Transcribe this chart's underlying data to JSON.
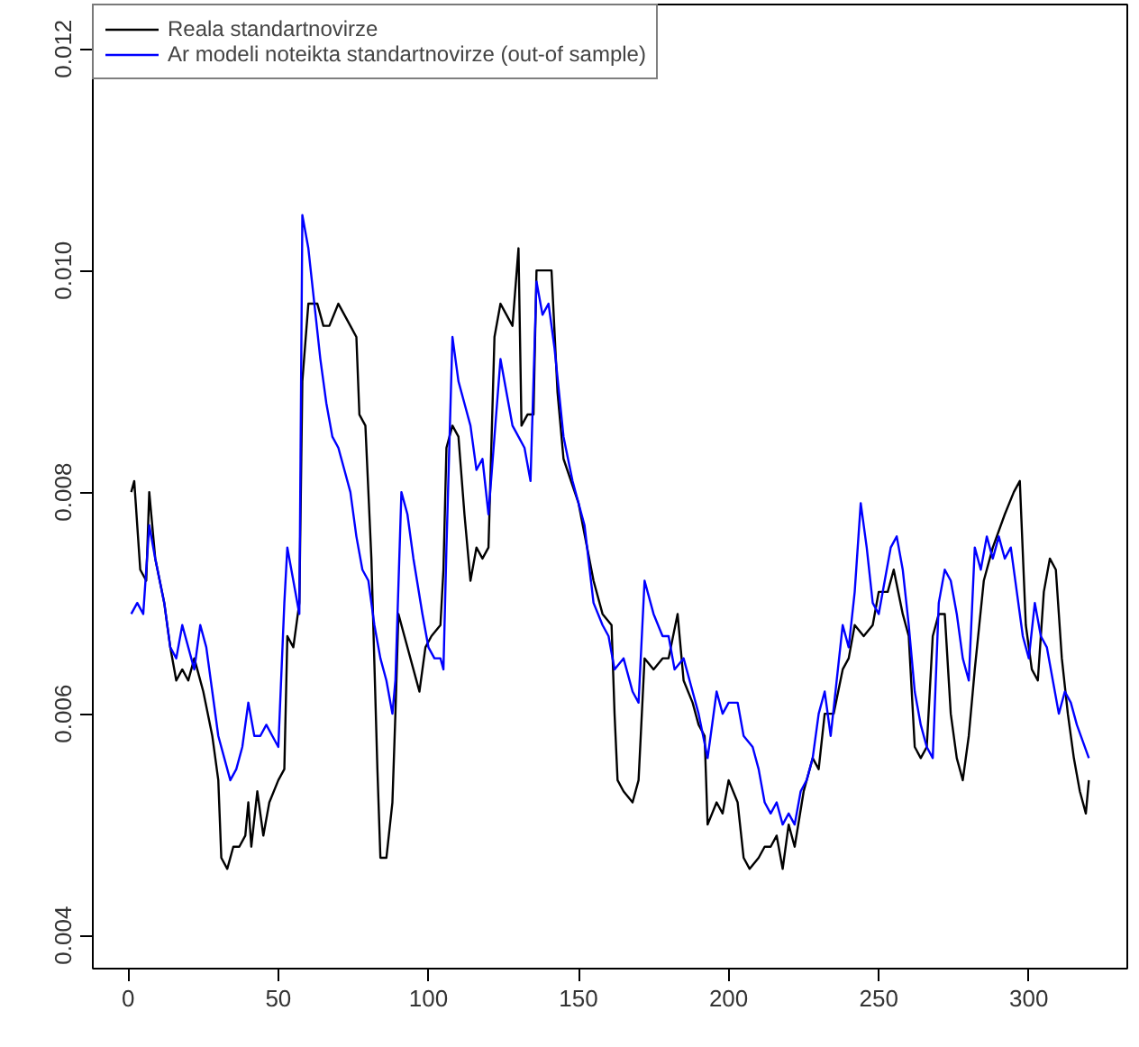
{
  "chart_data": {
    "type": "line",
    "series": [
      {
        "name": "Reala standartnovirze",
        "color": "#000000",
        "x": [
          1,
          2,
          4,
          6,
          7,
          9,
          12,
          14,
          16,
          18,
          20,
          22,
          25,
          28,
          30,
          31,
          33,
          35,
          37,
          39,
          40,
          41,
          43,
          45,
          47,
          50,
          52,
          53,
          55,
          57,
          58,
          60,
          63,
          65,
          67,
          70,
          72,
          74,
          76,
          77,
          79,
          81,
          83,
          84,
          86,
          88,
          89,
          90,
          92,
          95,
          97,
          99,
          101,
          104,
          105,
          106,
          108,
          110,
          112,
          114,
          116,
          118,
          120,
          122,
          124,
          126,
          128,
          130,
          131,
          133,
          135,
          136,
          138,
          141,
          143,
          145,
          150,
          155,
          158,
          161,
          162,
          163,
          165,
          168,
          170,
          172,
          175,
          178,
          180,
          183,
          185,
          188,
          190,
          192,
          193,
          196,
          198,
          200,
          203,
          205,
          207,
          210,
          212,
          214,
          216,
          218,
          220,
          222,
          225,
          228,
          230,
          232,
          235,
          238,
          240,
          242,
          245,
          248,
          250,
          253,
          255,
          258,
          260,
          262,
          264,
          266,
          268,
          270,
          272,
          274,
          276,
          278,
          280,
          282,
          285,
          288,
          292,
          295,
          297,
          299,
          301,
          303,
          305,
          307,
          309,
          311,
          313,
          315,
          317,
          319,
          320
        ],
        "values": [
          0.008,
          0.0081,
          0.0073,
          0.0072,
          0.008,
          0.0074,
          0.007,
          0.0066,
          0.0063,
          0.0064,
          0.0063,
          0.0065,
          0.0062,
          0.0058,
          0.0054,
          0.0047,
          0.0046,
          0.0048,
          0.0048,
          0.0049,
          0.0052,
          0.0048,
          0.0053,
          0.0049,
          0.0052,
          0.0054,
          0.0055,
          0.0067,
          0.0066,
          0.007,
          0.009,
          0.0097,
          0.0097,
          0.0095,
          0.0095,
          0.0097,
          0.0096,
          0.0095,
          0.0094,
          0.0087,
          0.0086,
          0.0074,
          0.0055,
          0.0047,
          0.0047,
          0.0052,
          0.006,
          0.0069,
          0.0067,
          0.0064,
          0.0062,
          0.0066,
          0.0067,
          0.0068,
          0.0073,
          0.0084,
          0.0086,
          0.0085,
          0.0078,
          0.0072,
          0.0075,
          0.0074,
          0.0075,
          0.0094,
          0.0097,
          0.0096,
          0.0095,
          0.0102,
          0.0086,
          0.0087,
          0.0087,
          0.01,
          0.01,
          0.01,
          0.0089,
          0.0083,
          0.0079,
          0.0072,
          0.0069,
          0.0068,
          0.006,
          0.0054,
          0.0053,
          0.0052,
          0.0054,
          0.0065,
          0.0064,
          0.0065,
          0.0065,
          0.0069,
          0.0063,
          0.0061,
          0.0059,
          0.0058,
          0.005,
          0.0052,
          0.0051,
          0.0054,
          0.0052,
          0.0047,
          0.0046,
          0.0047,
          0.0048,
          0.0048,
          0.0049,
          0.0046,
          0.005,
          0.0048,
          0.0053,
          0.0056,
          0.0055,
          0.006,
          0.006,
          0.0064,
          0.0065,
          0.0068,
          0.0067,
          0.0068,
          0.0071,
          0.0071,
          0.0073,
          0.0069,
          0.0067,
          0.0057,
          0.0056,
          0.0057,
          0.0067,
          0.0069,
          0.0069,
          0.006,
          0.0056,
          0.0054,
          0.0058,
          0.0064,
          0.0072,
          0.0075,
          0.0078,
          0.008,
          0.0081,
          0.0068,
          0.0064,
          0.0063,
          0.0071,
          0.0074,
          0.0073,
          0.0065,
          0.006,
          0.0056,
          0.0053,
          0.0051,
          0.0054
        ]
      },
      {
        "name": "Ar modeli noteikta standartnovirze (out-of sample)",
        "color": "#0000ff",
        "x": [
          1,
          3,
          5,
          7,
          9,
          12,
          14,
          16,
          18,
          20,
          22,
          24,
          26,
          28,
          30,
          32,
          34,
          36,
          38,
          40,
          42,
          44,
          46,
          48,
          50,
          52,
          53,
          55,
          57,
          58,
          60,
          62,
          64,
          66,
          68,
          70,
          72,
          74,
          76,
          78,
          80,
          82,
          84,
          86,
          88,
          89,
          91,
          93,
          95,
          98,
          100,
          102,
          104,
          105,
          106,
          108,
          110,
          112,
          114,
          116,
          118,
          120,
          122,
          124,
          126,
          128,
          130,
          132,
          134,
          136,
          138,
          140,
          142,
          145,
          148,
          152,
          155,
          158,
          160,
          162,
          165,
          168,
          170,
          172,
          175,
          178,
          180,
          182,
          185,
          188,
          190,
          193,
          196,
          198,
          200,
          203,
          205,
          208,
          210,
          212,
          214,
          216,
          218,
          220,
          222,
          224,
          226,
          228,
          230,
          232,
          234,
          236,
          238,
          240,
          242,
          244,
          246,
          248,
          250,
          252,
          254,
          256,
          258,
          260,
          262,
          264,
          266,
          268,
          270,
          272,
          274,
          276,
          278,
          280,
          282,
          284,
          286,
          288,
          290,
          292,
          294,
          296,
          298,
          300,
          302,
          304,
          306,
          308,
          310,
          312,
          314,
          316,
          320
        ],
        "values": [
          0.0069,
          0.007,
          0.0069,
          0.0077,
          0.0074,
          0.007,
          0.0066,
          0.0065,
          0.0068,
          0.0066,
          0.0064,
          0.0068,
          0.0066,
          0.0062,
          0.0058,
          0.0056,
          0.0054,
          0.0055,
          0.0057,
          0.0061,
          0.0058,
          0.0058,
          0.0059,
          0.0058,
          0.0057,
          0.007,
          0.0075,
          0.0072,
          0.0069,
          0.0105,
          0.0102,
          0.0097,
          0.0092,
          0.0088,
          0.0085,
          0.0084,
          0.0082,
          0.008,
          0.0076,
          0.0073,
          0.0072,
          0.0068,
          0.0065,
          0.0063,
          0.006,
          0.0063,
          0.008,
          0.0078,
          0.0074,
          0.0069,
          0.0066,
          0.0065,
          0.0065,
          0.0064,
          0.0075,
          0.0094,
          0.009,
          0.0088,
          0.0086,
          0.0082,
          0.0083,
          0.0078,
          0.0085,
          0.0092,
          0.0089,
          0.0086,
          0.0085,
          0.0084,
          0.0081,
          0.0099,
          0.0096,
          0.0097,
          0.0093,
          0.0085,
          0.0081,
          0.0077,
          0.007,
          0.0068,
          0.0067,
          0.0064,
          0.0065,
          0.0062,
          0.0061,
          0.0072,
          0.0069,
          0.0067,
          0.0067,
          0.0064,
          0.0065,
          0.0062,
          0.006,
          0.0056,
          0.0062,
          0.006,
          0.0061,
          0.0061,
          0.0058,
          0.0057,
          0.0055,
          0.0052,
          0.0051,
          0.0052,
          0.005,
          0.0051,
          0.005,
          0.0053,
          0.0054,
          0.0056,
          0.006,
          0.0062,
          0.0058,
          0.0063,
          0.0068,
          0.0066,
          0.0071,
          0.0079,
          0.0075,
          0.007,
          0.0069,
          0.0072,
          0.0075,
          0.0076,
          0.0073,
          0.0068,
          0.0062,
          0.0059,
          0.0057,
          0.0056,
          0.007,
          0.0073,
          0.0072,
          0.0069,
          0.0065,
          0.0063,
          0.0075,
          0.0073,
          0.0076,
          0.0074,
          0.0076,
          0.0074,
          0.0075,
          0.0071,
          0.0067,
          0.0065,
          0.007,
          0.0067,
          0.0066,
          0.0063,
          0.006,
          0.0062,
          0.0061,
          0.0059,
          0.0056
        ]
      }
    ],
    "xlim": [
      -11.8,
      332.8
    ],
    "ylim": [
      0.0037,
      0.0124
    ],
    "xticks": [
      0,
      50,
      100,
      150,
      200,
      250,
      300
    ],
    "yticks": [
      {
        "value": 0.004,
        "label": "0.004"
      },
      {
        "value": 0.006,
        "label": "0.006"
      },
      {
        "value": 0.008,
        "label": "0.008"
      },
      {
        "value": 0.01,
        "label": "0.010"
      },
      {
        "value": 0.012,
        "label": "0.012"
      }
    ],
    "grid": false,
    "legend": "top left",
    "line_style": "solid",
    "marker": "none"
  }
}
